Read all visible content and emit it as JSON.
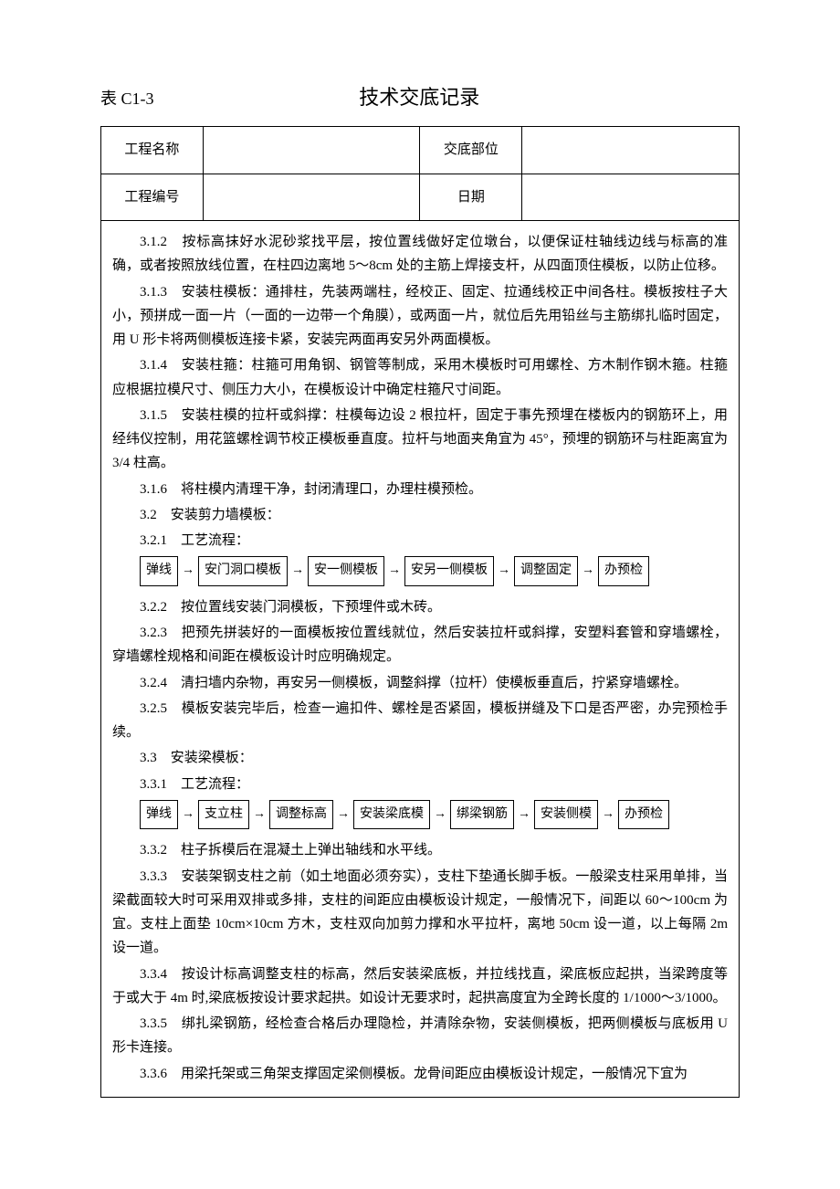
{
  "header": {
    "table_label": "表 C1-3",
    "title": "技术交底记录"
  },
  "info_table": {
    "row1_label1": "工程名称",
    "row1_value1": "",
    "row1_label2": "交底部位",
    "row1_value2": "",
    "row2_label1": "工程编号",
    "row2_value1": "",
    "row2_label2": "日期",
    "row2_value2": ""
  },
  "body": {
    "p312": "3.1.2　按标高抹好水泥砂浆找平层，按位置线做好定位墩台，以便保证柱轴线边线与标高的准确，或者按照放线位置，在柱四边离地 5～8cm 处的主筋上焊接支杆，从四面顶住模板，以防止位移。",
    "p313": "3.1.3　安装柱模板：通排柱，先装两端柱，经校正、固定、拉通线校正中间各柱。模板按柱子大小，预拼成一面一片（一面的一边带一个角膜），或两面一片，就位后先用铅丝与主筋绑扎临时固定，用 U 形卡将两侧模板连接卡紧，安装完两面再安另外两面模板。",
    "p314": "3.1.4　安装柱箍：柱箍可用角钢、钢管等制成，采用木模板时可用螺栓、方木制作钢木箍。柱箍应根据拉模尺寸、侧压力大小，在模板设计中确定柱箍尺寸间距。",
    "p315": "3.1.5　安装柱模的拉杆或斜撑：柱模每边设 2 根拉杆，固定于事先预埋在楼板内的钢筋环上，用经纬仪控制，用花篮螺栓调节校正模板垂直度。拉杆与地面夹角宜为 45°，预埋的钢筋环与柱距离宜为 3/4 柱高。",
    "p316": "3.1.6　将柱模内清理干净，封闭清理口，办理柱模预检。",
    "p32": "3.2　安装剪力墙模板：",
    "p321": "3.2.1　工艺流程：",
    "p322": "3.2.2　按位置线安装门洞模板，下预埋件或木砖。",
    "p323": "3.2.3　把预先拼装好的一面模板按位置线就位，然后安装拉杆或斜撑，安塑料套管和穿墙螺栓，穿墙螺栓规格和间距在模板设计时应明确规定。",
    "p324": "3.2.4　清扫墙内杂物，再安另一侧模板，调整斜撑（拉杆）使模板垂直后，拧紧穿墙螺栓。",
    "p325": "3.2.5　模板安装完毕后，检查一遍扣件、螺栓是否紧固，模板拼缝及下口是否严密，办完预检手续。",
    "p33": "3.3　安装梁模板：",
    "p331": "3.3.1　工艺流程：",
    "p332": "3.3.2　柱子拆模后在混凝土上弹出轴线和水平线。",
    "p333": "3.3.3　安装架钢支柱之前（如土地面必须夯实），支柱下垫通长脚手板。一般梁支柱采用单排，当梁截面较大时可采用双排或多排，支柱的间距应由模板设计规定，一般情况下，间距以 60～100cm 为宜。支柱上面垫 10cm×10cm 方木，支柱双向加剪力撑和水平拉杆，离地 50cm 设一道，以上每隔 2m 设一道。",
    "p334": "3.3.4　按设计标高调整支柱的标高，然后安装梁底板，并拉线找直，梁底板应起拱，当梁跨度等于或大于 4m 时,梁底板按设计要求起拱。如设计无要求时，起拱高度宜为全跨长度的 1/1000～3/1000。",
    "p335": "3.3.5　绑扎梁钢筋，经检查合格后办理隐检，并清除杂物，安装侧模板，把两侧模板与底板用 U 形卡连接。",
    "p336": "3.3.6　用梁托架或三角架支撑固定梁侧模板。龙骨间距应由模板设计规定，一般情况下宜为"
  },
  "flow1": {
    "b1": "弹线",
    "b2": "安门洞口模板",
    "b3": "安一侧模板",
    "b4": "安另一侧模板",
    "b5": "调整固定",
    "b6": "办预检"
  },
  "flow2": {
    "b1": "弹线",
    "b2": "支立柱",
    "b3": "调整标高",
    "b4": "安装梁底模",
    "b5": "绑梁钢筋",
    "b6": "安装侧模",
    "b7": "办预检"
  },
  "arrow": "→"
}
